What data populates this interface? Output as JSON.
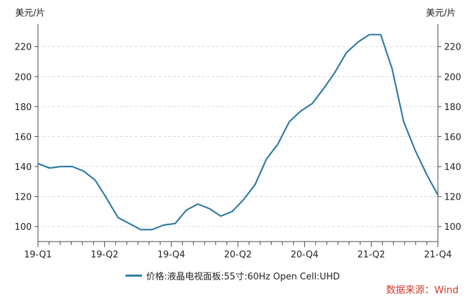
{
  "chart_data": {
    "type": "line",
    "y_unit": "美元/片",
    "ylim": [
      90,
      235
    ],
    "yticks": [
      100,
      120,
      140,
      160,
      180,
      200,
      220
    ],
    "x_ticks": [
      "19-Q1",
      "19-Q2",
      "19-Q4",
      "20-Q2",
      "20-Q4",
      "21-Q2",
      "21-Q4"
    ],
    "grid": true,
    "legend_position": "bottom",
    "series": [
      {
        "name": "价格:液晶电视面板:55寸:60Hz Open Cell:UHD",
        "color": "#2e7aa3",
        "values": [
          142,
          139,
          140,
          140,
          137,
          131,
          119,
          106,
          102,
          98,
          98,
          101,
          102,
          111,
          115,
          112,
          107,
          110,
          118,
          128,
          145,
          155,
          170,
          177,
          182,
          192,
          203,
          216,
          223,
          228,
          228,
          205,
          170,
          151,
          135,
          121
        ]
      }
    ]
  },
  "source_label": "数据来源：Wind"
}
